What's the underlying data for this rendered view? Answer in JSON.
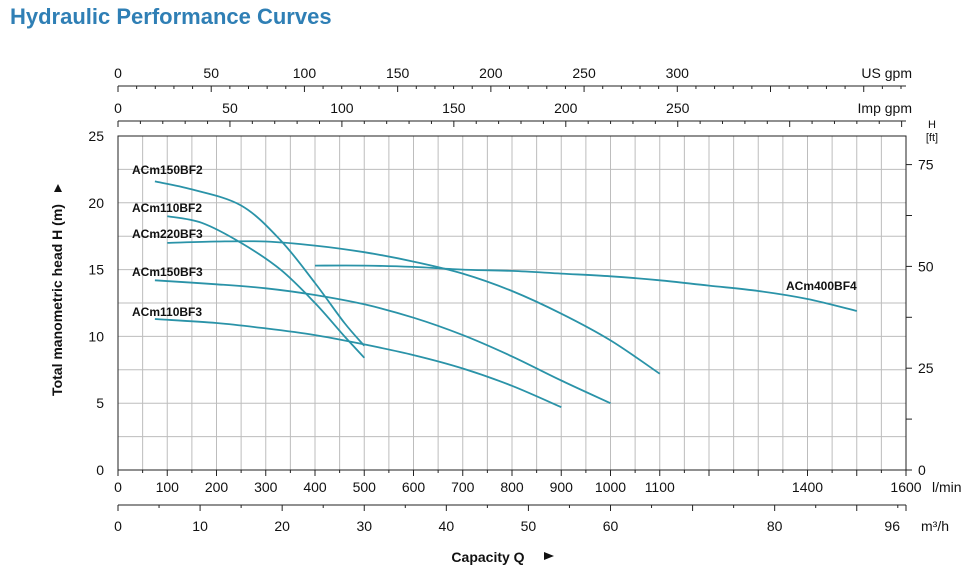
{
  "chart_data": {
    "type": "line",
    "title": "Hydraulic Performance Curves",
    "xlabel": "Capacity Q",
    "ylabel": "Total manometric head H (m)",
    "color": "#2a93a8",
    "x_unit": "l/min",
    "xlim": [
      0,
      1600
    ],
    "x_ticks": [
      0,
      100,
      200,
      300,
      400,
      500,
      600,
      700,
      800,
      900,
      1000,
      1100,
      1400,
      1600
    ],
    "ylim": [
      0,
      25
    ],
    "y_ticks": [
      0,
      5,
      10,
      15,
      20,
      25
    ],
    "right_axis": {
      "label_top": "H",
      "label_unit": "[ft]",
      "ticks": [
        0,
        25,
        50,
        75
      ]
    },
    "top_axis_usgpm": {
      "unit": "US gpm",
      "ticks": [
        0,
        50,
        100,
        150,
        200,
        250,
        300
      ]
    },
    "top_axis_impgpm": {
      "unit": "Imp gpm",
      "ticks": [
        0,
        50,
        100,
        150,
        200,
        250
      ]
    },
    "bottom_axis_m3h": {
      "unit": "m³/h",
      "ticks": [
        0,
        10,
        20,
        30,
        40,
        50,
        60,
        80,
        96
      ]
    },
    "grid": true,
    "series": [
      {
        "name": "ACm150BF2",
        "x": [
          75,
          150,
          250,
          330,
          400,
          460,
          500
        ],
        "y": [
          21.6,
          21,
          19.8,
          17.2,
          14,
          11,
          9.3
        ]
      },
      {
        "name": "ACm110BF2",
        "x": [
          100,
          170,
          250,
          330,
          400,
          460,
          500
        ],
        "y": [
          19,
          18.5,
          17,
          15,
          12.5,
          10,
          8.4
        ]
      },
      {
        "name": "ACm220BF3",
        "x": [
          100,
          200,
          300,
          400,
          500,
          600,
          700,
          800,
          900,
          1000,
          1100
        ],
        "y": [
          17,
          17.1,
          17.1,
          16.8,
          16.3,
          15.6,
          14.7,
          13.4,
          11.7,
          9.7,
          7.2
        ]
      },
      {
        "name": "ACm150BF3",
        "x": [
          75,
          200,
          300,
          400,
          500,
          600,
          700,
          800,
          900,
          1000
        ],
        "y": [
          14.2,
          13.9,
          13.6,
          13.1,
          12.4,
          11.4,
          10.1,
          8.5,
          6.7,
          5
        ]
      },
      {
        "name": "ACm110BF3",
        "x": [
          75,
          200,
          300,
          400,
          500,
          600,
          700,
          800,
          900
        ],
        "y": [
          11.3,
          11,
          10.6,
          10.1,
          9.4,
          8.6,
          7.6,
          6.3,
          4.7
        ]
      },
      {
        "name": "ACm400BF4",
        "x": [
          400,
          500,
          600,
          700,
          800,
          900,
          1000,
          1100,
          1200,
          1300,
          1400,
          1500
        ],
        "y": [
          15.3,
          15.3,
          15.2,
          15,
          14.9,
          14.7,
          14.5,
          14.2,
          13.8,
          13.4,
          12.8,
          11.9
        ]
      }
    ]
  }
}
